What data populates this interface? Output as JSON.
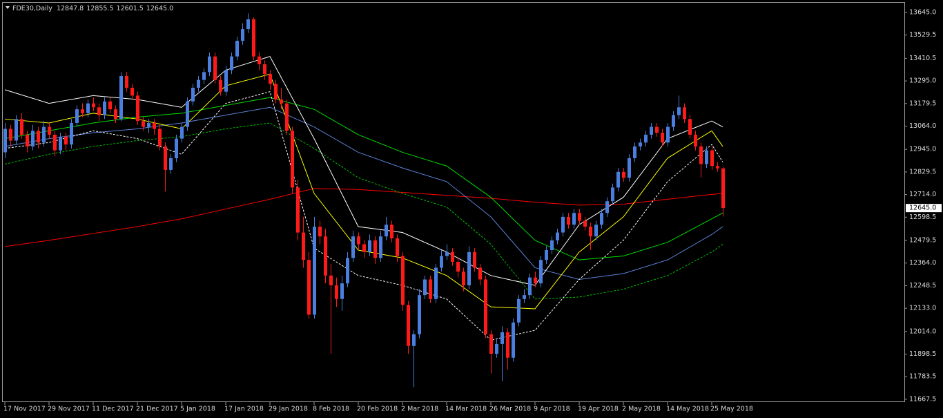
{
  "chart_data": {
    "type": "candlestick",
    "title": "FDE30,Daily",
    "header_values": [
      "12847.8",
      "12855.5",
      "12601.5",
      "12645.0"
    ],
    "up_color": "#4a7fe0",
    "down_color": "#ff1a1a",
    "background": "#000000",
    "categories": [
      "17 Nov 2017",
      null,
      null,
      null,
      null,
      null,
      null,
      null,
      "29 Nov 2017",
      null,
      null,
      null,
      null,
      null,
      null,
      null,
      "11 Dec 2017",
      null,
      null,
      null,
      null,
      null,
      null,
      null,
      "21 Dec 2017",
      null,
      null,
      null,
      null,
      null,
      null,
      null,
      "5 Jan 2018",
      null,
      null,
      null,
      null,
      null,
      null,
      null,
      "17 Jan 2018",
      null,
      null,
      null,
      null,
      null,
      null,
      null,
      "29 Jan 2018",
      null,
      null,
      null,
      null,
      null,
      null,
      null,
      "8 Feb 2018",
      null,
      null,
      null,
      null,
      null,
      null,
      null,
      "20 Feb 2018",
      null,
      null,
      null,
      null,
      null,
      null,
      null,
      "2 Mar 2018",
      null,
      null,
      null,
      null,
      null,
      null,
      null,
      "14 Mar 2018",
      null,
      null,
      null,
      null,
      null,
      null,
      null,
      "26 Mar 2018",
      null,
      null,
      null,
      null,
      null,
      null,
      null,
      "9 Apr 2018",
      null,
      null,
      null,
      null,
      null,
      null,
      null,
      "19 Apr 2018",
      null,
      null,
      null,
      null,
      null,
      null,
      null,
      "2 May 2018",
      null,
      null,
      null,
      null,
      null,
      null,
      null,
      "14 May 2018",
      null,
      null,
      null,
      null,
      null,
      null,
      null,
      "25 May 2018",
      null,
      null
    ],
    "candles": [
      [
        12930,
        13080,
        12900,
        13050
      ],
      [
        13050,
        13070,
        12960,
        12990
      ],
      [
        12990,
        13120,
        12970,
        13100
      ],
      [
        13100,
        13130,
        13000,
        13020
      ],
      [
        13020,
        13040,
        12930,
        12960
      ],
      [
        12960,
        13070,
        12940,
        13040
      ],
      [
        13040,
        13060,
        12950,
        12980
      ],
      [
        12980,
        13090,
        12960,
        13060
      ],
      [
        13060,
        13080,
        13000,
        13020
      ],
      [
        13020,
        13040,
        12910,
        12940
      ],
      [
        12940,
        13030,
        12920,
        13010
      ],
      [
        13010,
        13030,
        12940,
        12970
      ],
      [
        12970,
        13100,
        12950,
        13080
      ],
      [
        13080,
        13170,
        13060,
        13150
      ],
      [
        13150,
        13180,
        13110,
        13130
      ],
      [
        13130,
        13200,
        13110,
        13180
      ],
      [
        13180,
        13210,
        13140,
        13160
      ],
      [
        13160,
        13180,
        13090,
        13120
      ],
      [
        13120,
        13210,
        13100,
        13190
      ],
      [
        13190,
        13210,
        13130,
        13150
      ],
      [
        13150,
        13170,
        13080,
        13100
      ],
      [
        13100,
        13340,
        13090,
        13320
      ],
      [
        13320,
        13340,
        13240,
        13260
      ],
      [
        13260,
        13280,
        13200,
        13220
      ],
      [
        13220,
        13240,
        13070,
        13090
      ],
      [
        13090,
        13110,
        13040,
        13060
      ],
      [
        13060,
        13100,
        13030,
        13080
      ],
      [
        13080,
        13100,
        13020,
        13050
      ],
      [
        13050,
        13070,
        12940,
        12960
      ],
      [
        12960,
        12980,
        12730,
        12840
      ],
      [
        12840,
        12920,
        12820,
        12900
      ],
      [
        12900,
        13020,
        12880,
        13000
      ],
      [
        13000,
        13080,
        12980,
        13060
      ],
      [
        13060,
        13210,
        13040,
        13190
      ],
      [
        13190,
        13280,
        13170,
        13260
      ],
      [
        13260,
        13320,
        13240,
        13300
      ],
      [
        13300,
        13360,
        13280,
        13340
      ],
      [
        13340,
        13440,
        13320,
        13420
      ],
      [
        13420,
        13440,
        13280,
        13300
      ],
      [
        13300,
        13320,
        13220,
        13240
      ],
      [
        13240,
        13370,
        13220,
        13350
      ],
      [
        13350,
        13440,
        13330,
        13420
      ],
      [
        13420,
        13520,
        13400,
        13500
      ],
      [
        13500,
        13590,
        13480,
        13560
      ],
      [
        13560,
        13640,
        13540,
        13610
      ],
      [
        13610,
        13620,
        13400,
        13420
      ],
      [
        13420,
        13440,
        13350,
        13380
      ],
      [
        13380,
        13400,
        13300,
        13330
      ],
      [
        13330,
        13350,
        13250,
        13280
      ],
      [
        13280,
        13300,
        13180,
        13200
      ],
      [
        13200,
        13260,
        13150,
        13180
      ],
      [
        13180,
        13200,
        13020,
        13040
      ],
      [
        13040,
        13060,
        12720,
        12750
      ],
      [
        12750,
        12790,
        12480,
        12520
      ],
      [
        12520,
        12600,
        12340,
        12380
      ],
      [
        12380,
        12420,
        12080,
        12100
      ],
      [
        12100,
        12600,
        12080,
        12550
      ],
      [
        12550,
        12580,
        12460,
        12500
      ],
      [
        12500,
        12540,
        12260,
        12300
      ],
      [
        12300,
        12360,
        11900,
        12250
      ],
      [
        12250,
        12290,
        12140,
        12180
      ],
      [
        12180,
        12300,
        12120,
        12260
      ],
      [
        12260,
        12420,
        12240,
        12390
      ],
      [
        12390,
        12530,
        12370,
        12500
      ],
      [
        12500,
        12520,
        12430,
        12460
      ],
      [
        12460,
        12480,
        12390,
        12420
      ],
      [
        12420,
        12510,
        12400,
        12480
      ],
      [
        12480,
        12500,
        12360,
        12390
      ],
      [
        12390,
        12530,
        12370,
        12500
      ],
      [
        12500,
        12600,
        12480,
        12560
      ],
      [
        12560,
        12580,
        12470,
        12490
      ],
      [
        12490,
        12510,
        12370,
        12400
      ],
      [
        12400,
        12420,
        12120,
        12150
      ],
      [
        12150,
        12170,
        11900,
        11940
      ],
      [
        11940,
        12020,
        11730,
        12000
      ],
      [
        12000,
        12230,
        11980,
        12200
      ],
      [
        12200,
        12300,
        12180,
        12280
      ],
      [
        12280,
        12300,
        12160,
        12180
      ],
      [
        12180,
        12360,
        12160,
        12340
      ],
      [
        12340,
        12430,
        12320,
        12400
      ],
      [
        12400,
        12460,
        12380,
        12420
      ],
      [
        12420,
        12440,
        12350,
        12370
      ],
      [
        12370,
        12390,
        12290,
        12320
      ],
      [
        12320,
        12340,
        12220,
        12250
      ],
      [
        12250,
        12450,
        12230,
        12420
      ],
      [
        12420,
        12440,
        12320,
        12340
      ],
      [
        12340,
        12360,
        12250,
        12280
      ],
      [
        12280,
        12300,
        11980,
        12000
      ],
      [
        12000,
        12020,
        11800,
        11900
      ],
      [
        11900,
        11980,
        11880,
        11950
      ],
      [
        11950,
        12040,
        11760,
        12010
      ],
      [
        12010,
        12030,
        11820,
        11880
      ],
      [
        11880,
        12080,
        11860,
        12060
      ],
      [
        12060,
        12200,
        12040,
        12180
      ],
      [
        12180,
        12230,
        12160,
        12200
      ],
      [
        12200,
        12310,
        12180,
        12290
      ],
      [
        12290,
        12320,
        12240,
        12260
      ],
      [
        12260,
        12400,
        12240,
        12380
      ],
      [
        12380,
        12450,
        12360,
        12430
      ],
      [
        12430,
        12500,
        12410,
        12480
      ],
      [
        12480,
        12540,
        12460,
        12520
      ],
      [
        12520,
        12620,
        12500,
        12600
      ],
      [
        12600,
        12620,
        12540,
        12560
      ],
      [
        12560,
        12640,
        12540,
        12620
      ],
      [
        12620,
        12640,
        12560,
        12580
      ],
      [
        12580,
        12600,
        12530,
        12550
      ],
      [
        12550,
        12570,
        12430,
        12500
      ],
      [
        12500,
        12580,
        12480,
        12560
      ],
      [
        12560,
        12640,
        12540,
        12620
      ],
      [
        12620,
        12700,
        12600,
        12680
      ],
      [
        12680,
        12770,
        12660,
        12750
      ],
      [
        12750,
        12850,
        12730,
        12830
      ],
      [
        12830,
        12850,
        12780,
        12800
      ],
      [
        12800,
        12920,
        12780,
        12900
      ],
      [
        12900,
        12980,
        12880,
        12960
      ],
      [
        12960,
        13000,
        12940,
        12980
      ],
      [
        12980,
        13040,
        12960,
        13020
      ],
      [
        13020,
        13080,
        13000,
        13060
      ],
      [
        13060,
        13080,
        13010,
        13030
      ],
      [
        13030,
        13050,
        12960,
        12980
      ],
      [
        12980,
        13080,
        12960,
        13060
      ],
      [
        13060,
        13140,
        13040,
        13120
      ],
      [
        13120,
        13220,
        13100,
        13160
      ],
      [
        13160,
        13180,
        13080,
        13100
      ],
      [
        13100,
        13120,
        13000,
        13020
      ],
      [
        13020,
        13040,
        12940,
        12960
      ],
      [
        12960,
        12980,
        12800,
        12870
      ],
      [
        12870,
        12960,
        12850,
        12940
      ],
      [
        12940,
        12960,
        12840,
        12860
      ],
      [
        12860,
        12880,
        12830,
        12847.8
      ],
      [
        12847.8,
        12855.5,
        12601.5,
        12645
      ]
    ],
    "overlays": {
      "x": [
        0,
        8,
        16,
        24,
        32,
        40,
        48,
        56,
        64,
        72,
        80,
        88,
        96,
        104,
        112,
        120,
        128,
        130
      ],
      "series": [
        {
          "color": "#ff0000",
          "style": "solid",
          "values": [
            12448,
            12480,
            12515,
            12550,
            12590,
            12640,
            12690,
            12745,
            12740,
            12725,
            12710,
            12695,
            12675,
            12660,
            12665,
            12690,
            12715,
            12720
          ]
        },
        {
          "color": "#00e000",
          "style": "solid",
          "values": [
            13000,
            13040,
            13080,
            13110,
            13130,
            13170,
            13210,
            13150,
            13020,
            12930,
            12860,
            12700,
            12480,
            12380,
            12400,
            12470,
            12590,
            12620
          ]
        },
        {
          "color": "#5b82d6",
          "style": "solid",
          "values": [
            12960,
            13000,
            13030,
            13050,
            13080,
            13120,
            13160,
            13060,
            12930,
            12850,
            12780,
            12600,
            12340,
            12280,
            12310,
            12380,
            12510,
            12550
          ]
        },
        {
          "color": "#00c000",
          "style": "dashed",
          "values": [
            12870,
            12920,
            12960,
            12990,
            13010,
            13050,
            13080,
            12950,
            12800,
            12720,
            12650,
            12460,
            12180,
            12190,
            12230,
            12300,
            12420,
            12460
          ]
        },
        {
          "color": "#ffffff",
          "style": "solid",
          "values": [
            13250,
            13180,
            13220,
            13200,
            13160,
            13350,
            13420,
            13000,
            12550,
            12520,
            12420,
            12300,
            12250,
            12560,
            12700,
            13000,
            13090,
            13060
          ]
        },
        {
          "color": "#ffff00",
          "style": "solid",
          "values": [
            13100,
            13080,
            13130,
            13100,
            13050,
            13270,
            13330,
            12720,
            12430,
            12390,
            12300,
            12140,
            12130,
            12420,
            12600,
            12900,
            13040,
            12960
          ]
        },
        {
          "color": "#ffffff",
          "style": "dashed",
          "values": [
            12950,
            12980,
            13040,
            13000,
            12920,
            13180,
            13240,
            12440,
            12300,
            12250,
            12180,
            11970,
            12020,
            12280,
            12480,
            12780,
            12970,
            12880
          ]
        }
      ]
    },
    "current_price": {
      "value": 12645,
      "label": "12645.0"
    },
    "ylim": [
      11653,
      13698
    ],
    "yticks": [
      {
        "value": 13645,
        "label": "13645.0"
      },
      13529.5,
      13410.5,
      {
        "value": 13295,
        "label": "13295.0"
      },
      13179.5,
      {
        "value": 13064,
        "label": "13064.0"
      },
      {
        "value": 12945,
        "label": "12945.0"
      },
      12829.5,
      {
        "value": 12714,
        "label": "12714.0"
      },
      12598.5,
      12479.5,
      {
        "value": 12364,
        "label": "12364.0"
      },
      12248.5,
      {
        "value": 12133,
        "label": "12133.0"
      },
      {
        "value": 12014,
        "label": "12014.0"
      },
      11898.5,
      11783.5,
      11667.5
    ]
  }
}
